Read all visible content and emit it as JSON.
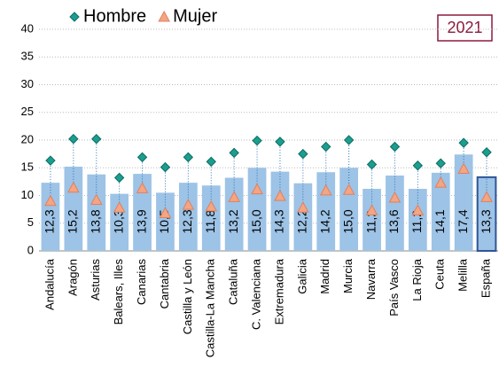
{
  "chart_data": {
    "type": "bar",
    "categories": [
      "Andalucía",
      "Aragón",
      "Asturias",
      "Balears, Illes",
      "Canarias",
      "Cantabria",
      "Castilla y León",
      "Castilla-La Mancha",
      "Cataluña",
      "C. Valenciana",
      "Extremadura",
      "Galicia",
      "Madrid",
      "Murcia",
      "Navarra",
      "País Vasco",
      "La Rioja",
      "Ceuta",
      "Melilla",
      "España"
    ],
    "values": [
      12.3,
      15.2,
      13.8,
      10.3,
      13.9,
      10.5,
      12.3,
      11.8,
      13.2,
      15.0,
      14.3,
      12.2,
      14.2,
      15.0,
      11.2,
      13.6,
      11.2,
      14.1,
      17.4,
      13.3
    ],
    "value_labels": [
      "12,3",
      "15,2",
      "13,8",
      "10,3",
      "13,9",
      "10,5",
      "12,3",
      "11,8",
      "13,2",
      "15,0",
      "14,3",
      "12,2",
      "14,2",
      "15,0",
      "11,2",
      "13,6",
      "11,2",
      "14,1",
      "17,4",
      "13,3"
    ],
    "color": "#9dc3e6",
    "highlight": {
      "category": "España",
      "color": "#2f5597"
    },
    "series": [
      {
        "name": "Hombre",
        "color": "#1a9e8f",
        "marker": "diamond",
        "values": [
          16.3,
          20.2,
          20.2,
          13.2,
          16.9,
          15.1,
          16.9,
          16.1,
          17.7,
          19.9,
          19.7,
          17.5,
          18.8,
          20.0,
          15.6,
          18.8,
          15.4,
          15.8,
          19.5,
          17.8
        ]
      },
      {
        "name": "Mujer",
        "color": "#f4a582",
        "marker": "triangle",
        "values": [
          9.0,
          11.4,
          9.2,
          7.8,
          11.3,
          6.8,
          8.3,
          8.0,
          9.7,
          11.1,
          9.9,
          7.8,
          10.9,
          11.0,
          7.3,
          9.6,
          7.3,
          12.3,
          14.8,
          9.7
        ]
      }
    ],
    "annotation": "2021",
    "ylim": [
      0,
      40
    ],
    "yticks": [
      0,
      5,
      10,
      15,
      20,
      25,
      30,
      35,
      40
    ],
    "grid": true
  }
}
